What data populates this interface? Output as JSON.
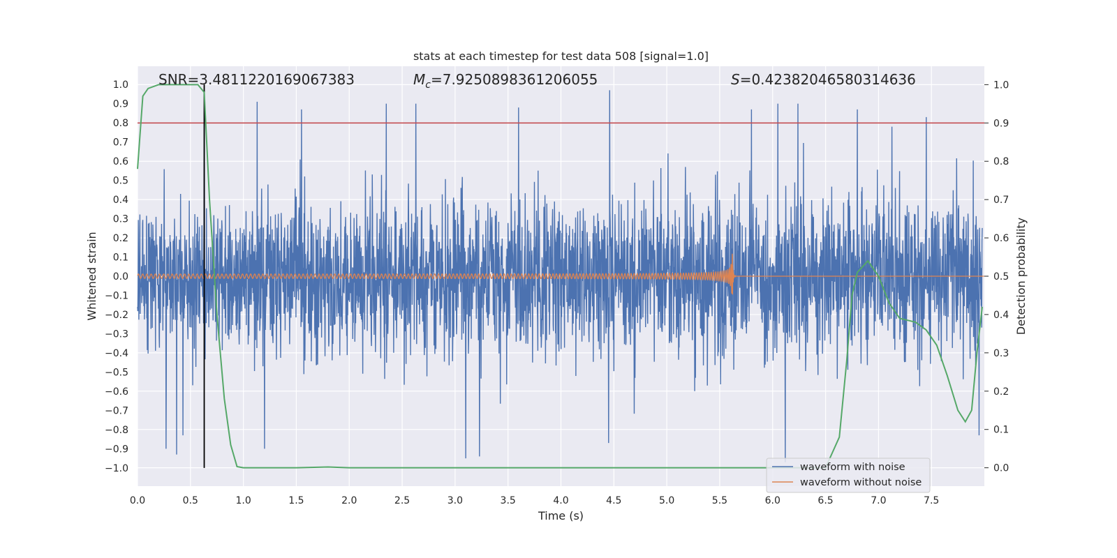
{
  "chart_data": {
    "type": "line",
    "title": "stats at each timestep for test data 508 [signal=1.0]",
    "xlabel": "Time (s)",
    "ylabel_left": "Whitened strain",
    "ylabel_right": "Detection probability",
    "xlim": [
      0.0,
      8.0
    ],
    "ylim_left": [
      -1.095,
      1.095
    ],
    "ylim_right": [
      -0.048,
      1.048
    ],
    "x_ticks": [
      "0.0",
      "0.5",
      "1.0",
      "1.5",
      "2.0",
      "2.5",
      "3.0",
      "3.5",
      "4.0",
      "4.5",
      "5.0",
      "5.5",
      "6.0",
      "6.5",
      "7.0",
      "7.5"
    ],
    "y_ticks_left": [
      "1.0",
      "0.9",
      "0.8",
      "0.7",
      "0.6",
      "0.5",
      "0.4",
      "0.3",
      "0.2",
      "0.1",
      "0.0",
      "−0.1",
      "−0.2",
      "−0.3",
      "−0.4",
      "−0.5",
      "−0.6",
      "−0.7",
      "−0.8",
      "−0.9",
      "−1.0"
    ],
    "y_ticks_right": [
      "1.0",
      "0.9",
      "0.8",
      "0.7",
      "0.6",
      "0.5",
      "0.4",
      "0.3",
      "0.2",
      "0.1",
      "0.0"
    ],
    "grid": true,
    "legend_position": "bottom-right",
    "annotations": {
      "snr": "SNR=3.4811220169067383",
      "mc_symbol": "M",
      "mc_sub": "c",
      "mc_value": "=7.9250898361206055",
      "s_symbol": "S",
      "s_value": "=0.42382046580314636"
    },
    "series": [
      {
        "name": "waveform with noise",
        "axis": "left",
        "color": "#4c72b0",
        "description": "noisy whitened strain, amplitude roughly within -0.95..0.97",
        "noise_std": 0.2,
        "spikes": [
          {
            "x": 0.63,
            "y": 0.93
          },
          {
            "x": 1.13,
            "y": 0.91
          },
          {
            "x": 1.55,
            "y": 0.87
          },
          {
            "x": 2.35,
            "y": 0.9
          },
          {
            "x": 2.63,
            "y": 0.9
          },
          {
            "x": 3.6,
            "y": 0.88
          },
          {
            "x": 4.46,
            "y": 0.97
          },
          {
            "x": 5.8,
            "y": 0.87
          },
          {
            "x": 6.05,
            "y": 0.9
          },
          {
            "x": 6.24,
            "y": 0.9
          },
          {
            "x": 6.8,
            "y": 0.87
          },
          {
            "x": 7.45,
            "y": 0.83
          },
          {
            "x": 0.27,
            "y": -0.9
          },
          {
            "x": 0.37,
            "y": -0.93
          },
          {
            "x": 0.43,
            "y": -0.83
          },
          {
            "x": 1.2,
            "y": -0.9
          },
          {
            "x": 3.1,
            "y": -0.95
          },
          {
            "x": 3.23,
            "y": -0.94
          },
          {
            "x": 4.45,
            "y": -0.87
          },
          {
            "x": 6.12,
            "y": -0.97
          },
          {
            "x": 7.95,
            "y": -0.83
          }
        ]
      },
      {
        "name": "waveform without noise",
        "axis": "left",
        "color": "#dd8452",
        "description": "chirp signal; amplitude grows until merger then ringdown to zero",
        "t_merger": 5.62,
        "amp_start": 0.01,
        "amp_peak": 0.12,
        "freq_start": 25
      },
      {
        "name": "Detection probability",
        "axis": "right",
        "color": "#55a868",
        "x": [
          0.0,
          0.05,
          0.1,
          0.2,
          0.3,
          0.4,
          0.5,
          0.57,
          0.63,
          0.68,
          0.75,
          0.82,
          0.88,
          0.94,
          1.0,
          1.5,
          1.8,
          2.0,
          3.0,
          4.0,
          5.0,
          5.5,
          6.0,
          6.3,
          6.5,
          6.63,
          6.7,
          6.75,
          6.8,
          6.9,
          7.0,
          7.1,
          7.2,
          7.35,
          7.45,
          7.55,
          7.65,
          7.75,
          7.82,
          7.88,
          7.93,
          7.98
        ],
        "y": [
          0.78,
          0.97,
          0.99,
          1.0,
          1.0,
          1.0,
          1.0,
          1.0,
          0.98,
          0.7,
          0.4,
          0.18,
          0.06,
          0.003,
          0.0,
          0.0,
          0.002,
          0.0,
          0.0,
          0.0,
          0.0,
          0.0,
          0.0,
          0.0,
          0.0,
          0.08,
          0.28,
          0.45,
          0.51,
          0.54,
          0.5,
          0.43,
          0.39,
          0.38,
          0.36,
          0.32,
          0.24,
          0.15,
          0.12,
          0.15,
          0.3,
          0.42
        ]
      }
    ],
    "reference_lines": [
      {
        "name": "detection threshold",
        "axis": "right",
        "orientation": "horizontal",
        "value": 0.9,
        "color": "#c44e52"
      },
      {
        "name": "trigger time",
        "axis": "left",
        "orientation": "vertical",
        "value": 0.63,
        "y_from": -1.0,
        "y_to": 1.0,
        "color": "#000000"
      }
    ]
  }
}
